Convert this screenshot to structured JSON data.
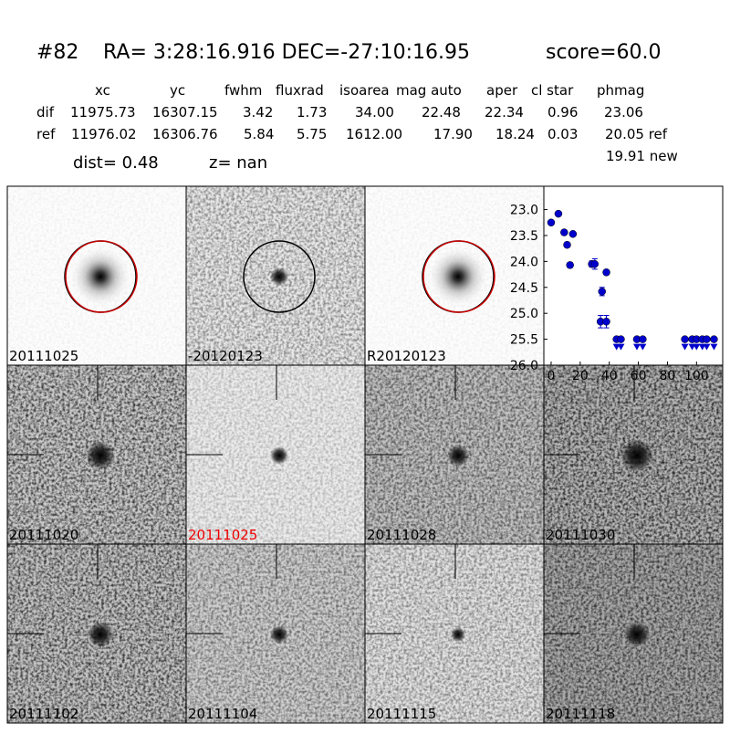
{
  "header": {
    "id": "#82",
    "coords": "RA= 3:28:16.916 DEC=-27:10:16.95",
    "score": "score=60.0"
  },
  "table": {
    "columns": [
      "xc",
      "yc",
      "fwhm",
      "fluxrad",
      "isoarea",
      "mag auto",
      "aper",
      "cl star",
      "phmag"
    ],
    "rows": [
      [
        "dif",
        "11975.73",
        "16307.15",
        "3.42",
        "1.73",
        "34.00",
        "22.48",
        "22.34",
        "0.96",
        "23.06"
      ],
      [
        "ref",
        "11976.02",
        "16306.76",
        "5.84",
        "5.75",
        "1612.00",
        "17.90",
        "18.24",
        "0.03",
        "20.05 ref"
      ]
    ],
    "extra": "19.91 new"
  },
  "dist": "dist=  0.48",
  "z": "z=   nan",
  "panels": [
    "20111025",
    "-20120123",
    "R20120123",
    "20111020",
    "20111025",
    "20111028",
    "20111030",
    "20111102",
    "20111104",
    "20111115",
    "20111118"
  ],
  "chart_data": {
    "type": "scatter",
    "xlim": [
      -5,
      118
    ],
    "xticks": [
      0,
      20,
      40,
      60,
      80,
      100
    ],
    "ylim": [
      26.0,
      22.55
    ],
    "yticks": [
      {
        "value": 23.0,
        "label": "23.0"
      },
      {
        "value": 23.5,
        "label": "23.5"
      },
      {
        "value": 24.0,
        "label": "24.0"
      },
      {
        "value": 24.5,
        "label": "24.5"
      },
      {
        "value": 25.0,
        "label": "25.0"
      },
      {
        "value": 25.5,
        "label": "25.5"
      },
      {
        "value": 26.0,
        "label": "26.0"
      }
    ],
    "series": [
      {
        "color": "#0000cc",
        "marker": "circle",
        "x": [
          0,
          5,
          9,
          11,
          13,
          15,
          28,
          30,
          34,
          35,
          38,
          38
        ],
        "values": [
          23.25,
          23.08,
          23.44,
          23.68,
          24.07,
          23.47,
          24.05,
          24.05,
          25.16,
          24.58,
          24.21,
          25.16
        ],
        "errors": [
          0.04,
          0.03,
          0.04,
          0.05,
          0.05,
          0.04,
          0.06,
          0.1,
          0.12,
          0.08,
          0.05,
          0.12
        ]
      },
      {
        "color": "#0000cc",
        "marker": "upper-limit",
        "x": [
          45,
          48,
          59,
          63,
          92,
          97,
          100,
          104,
          107,
          112
        ],
        "values": [
          25.5,
          25.5,
          25.5,
          25.5,
          25.5,
          25.5,
          25.5,
          25.5,
          25.5,
          25.5
        ]
      }
    ]
  }
}
